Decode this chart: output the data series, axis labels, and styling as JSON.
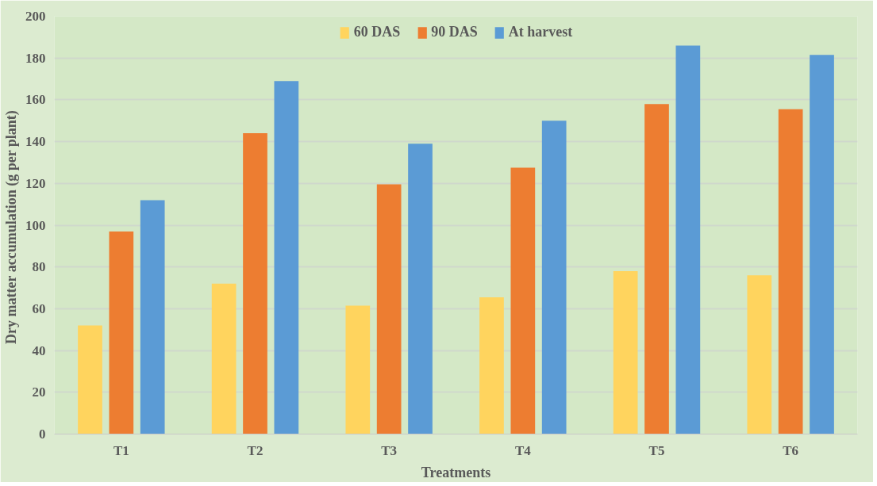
{
  "chart_data": {
    "type": "bar",
    "xlabel": "Treatments",
    "ylabel": "Dry matter accumulation  (g per plant)",
    "categories": [
      "T1",
      "T2",
      "T3",
      "T4",
      "T5",
      "T6"
    ],
    "series": [
      {
        "name": "60 DAS",
        "color": "#ffd45e",
        "values": [
          52,
          72,
          61.5,
          65.5,
          78,
          76
        ]
      },
      {
        "name": "90 DAS",
        "color": "#ed7d31",
        "values": [
          97,
          144,
          119.5,
          127.5,
          158,
          155.5
        ]
      },
      {
        "name": "At harvest",
        "color": "#5b9bd5",
        "values": [
          112,
          169,
          139,
          150,
          186,
          181.5
        ]
      }
    ],
    "ylim": [
      0,
      200
    ],
    "yticks": [
      0,
      20,
      40,
      60,
      80,
      100,
      120,
      140,
      160,
      180,
      200
    ],
    "grid": "y",
    "legend": "top"
  }
}
